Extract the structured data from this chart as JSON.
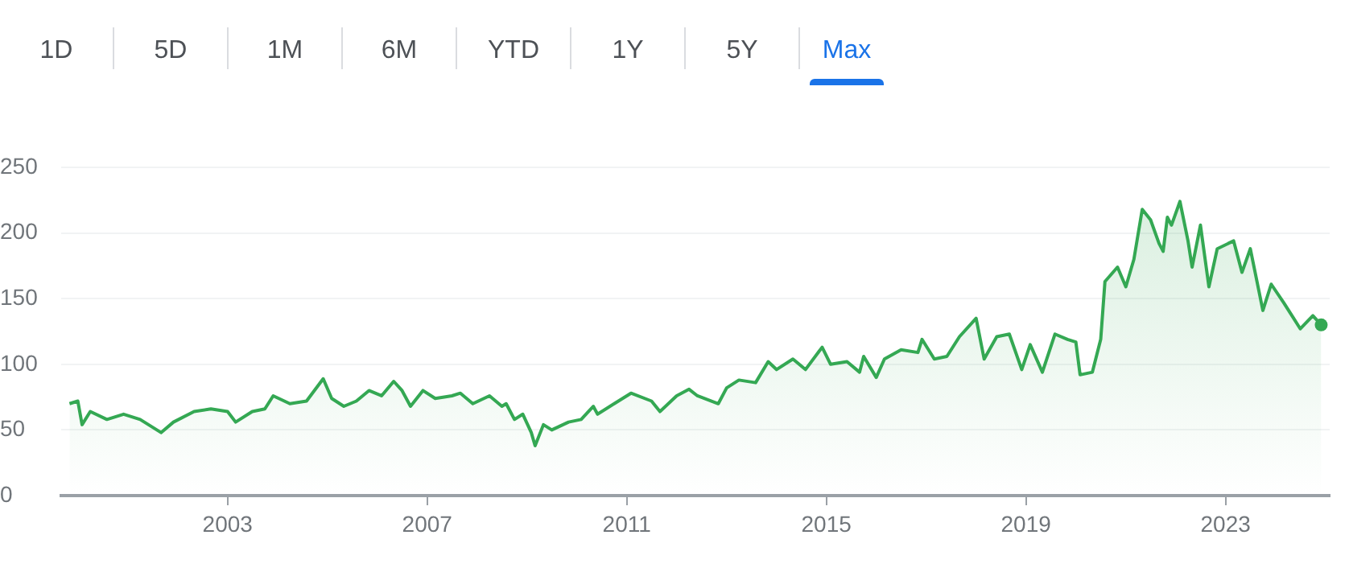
{
  "chart_data": {
    "type": "area",
    "annotations": [
      "1D",
      "5D",
      "1M",
      "6M",
      "YTD",
      "1Y",
      "5Y",
      "Max"
    ],
    "x": [
      "1999-11",
      "2000-01",
      "2000-02",
      "2000-04",
      "2000-08",
      "2000-12",
      "2001-04",
      "2001-09",
      "2001-12",
      "2002-05",
      "2002-09",
      "2003-01",
      "2003-03",
      "2003-07",
      "2003-10",
      "2003-12",
      "2004-04",
      "2004-08",
      "2004-12",
      "2005-02",
      "2005-05",
      "2005-08",
      "2005-11",
      "2006-02",
      "2006-05",
      "2006-07",
      "2006-09",
      "2006-12",
      "2007-03",
      "2007-07",
      "2007-09",
      "2007-12",
      "2008-04",
      "2008-07",
      "2008-08",
      "2008-10",
      "2008-12",
      "2009-02",
      "2009-03",
      "2009-05",
      "2009-07",
      "2009-11",
      "2010-02",
      "2010-05",
      "2010-06",
      "2010-10",
      "2011-02",
      "2011-07",
      "2011-09",
      "2012-01",
      "2012-04",
      "2012-06",
      "2012-11",
      "2013-01",
      "2013-04",
      "2013-08",
      "2013-11",
      "2014-01",
      "2014-05",
      "2014-08",
      "2014-12",
      "2015-02",
      "2015-06",
      "2015-09",
      "2015-10",
      "2016-01",
      "2016-03",
      "2016-07",
      "2016-11",
      "2016-12",
      "2017-03",
      "2017-06",
      "2017-09",
      "2018-01",
      "2018-03",
      "2018-06",
      "2018-09",
      "2018-12",
      "2019-02",
      "2019-05",
      "2019-08",
      "2019-11",
      "2020-01",
      "2020-02",
      "2020-05",
      "2020-07",
      "2020-08",
      "2020-11",
      "2021-01",
      "2021-03",
      "2021-05",
      "2021-07",
      "2021-09",
      "2021-10",
      "2021-11",
      "2021-12",
      "2022-02",
      "2022-04",
      "2022-05",
      "2022-07",
      "2022-09",
      "2022-11",
      "2023-03",
      "2023-05",
      "2023-07",
      "2023-10",
      "2023-12",
      "2024-03",
      "2024-05",
      "2024-07",
      "2024-10",
      "2024-12"
    ],
    "series": [
      {
        "color": "#34a853",
        "values": [
          70,
          72,
          54,
          64,
          58,
          62,
          58,
          48,
          56,
          64,
          66,
          64,
          56,
          64,
          66,
          76,
          70,
          72,
          89,
          74,
          68,
          72,
          80,
          76,
          87,
          80,
          68,
          80,
          74,
          76,
          78,
          70,
          76,
          68,
          70,
          58,
          62,
          48,
          38,
          54,
          50,
          56,
          58,
          68,
          62,
          70,
          78,
          72,
          64,
          76,
          81,
          76,
          70,
          82,
          88,
          86,
          102,
          96,
          104,
          96,
          113,
          100,
          102,
          94,
          106,
          90,
          104,
          111,
          109,
          119,
          104,
          106,
          121,
          135,
          104,
          121,
          123,
          96,
          115,
          94,
          123,
          119,
          117,
          92,
          94,
          119,
          163,
          174,
          159,
          180,
          218,
          210,
          192,
          186,
          212,
          206,
          224,
          194,
          174,
          206,
          159,
          188,
          194,
          170,
          188,
          141,
          161,
          147,
          137,
          127,
          137,
          130
        ]
      }
    ],
    "xlim": [
      "1999-09",
      "2025-02"
    ],
    "xticks": [
      "2003",
      "2007",
      "2011",
      "2015",
      "2019",
      "2023"
    ],
    "ylim": [
      0,
      250
    ],
    "yticks": [
      0,
      50,
      100,
      150,
      200,
      250
    ],
    "grid": "y",
    "legend": false
  }
}
